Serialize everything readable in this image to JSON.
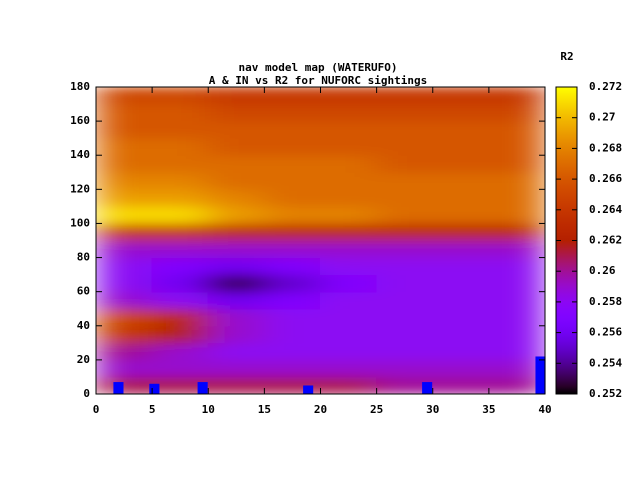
{
  "chart_data": {
    "type": "heatmap",
    "title": [
      "nav model map (WATERUFO)",
      "A & IN vs R2 for NUFORC sightings"
    ],
    "colorbar_label": "R2",
    "x": [
      2.5,
      7.5,
      12.5,
      17.5,
      22.5,
      27.5,
      32.5,
      37.5
    ],
    "y": [
      5,
      15,
      25,
      35,
      45,
      55,
      65,
      75,
      85,
      95,
      105,
      115,
      125,
      135,
      145,
      155,
      165,
      175
    ],
    "z": [
      [
        0.261,
        0.261,
        0.261,
        0.261,
        0.261,
        0.26,
        0.26,
        0.26
      ],
      [
        0.259,
        0.259,
        0.259,
        0.259,
        0.259,
        0.259,
        0.259,
        0.259
      ],
      [
        0.26,
        0.259,
        0.258,
        0.258,
        0.258,
        0.258,
        0.258,
        0.258
      ],
      [
        0.264,
        0.262,
        0.259,
        0.258,
        0.258,
        0.258,
        0.258,
        0.258
      ],
      [
        0.265,
        0.263,
        0.259,
        0.258,
        0.258,
        0.258,
        0.258,
        0.258
      ],
      [
        0.259,
        0.258,
        0.256,
        0.257,
        0.258,
        0.258,
        0.258,
        0.258
      ],
      [
        0.258,
        0.256,
        0.253,
        0.255,
        0.257,
        0.258,
        0.258,
        0.258
      ],
      [
        0.258,
        0.257,
        0.256,
        0.257,
        0.258,
        0.258,
        0.258,
        0.258
      ],
      [
        0.259,
        0.259,
        0.259,
        0.259,
        0.259,
        0.259,
        0.259,
        0.259
      ],
      [
        0.264,
        0.264,
        0.263,
        0.263,
        0.263,
        0.263,
        0.263,
        0.263
      ],
      [
        0.271,
        0.271,
        0.269,
        0.268,
        0.268,
        0.267,
        0.267,
        0.267
      ],
      [
        0.269,
        0.269,
        0.268,
        0.267,
        0.267,
        0.267,
        0.267,
        0.267
      ],
      [
        0.268,
        0.268,
        0.267,
        0.267,
        0.267,
        0.267,
        0.267,
        0.267
      ],
      [
        0.267,
        0.267,
        0.267,
        0.267,
        0.267,
        0.266,
        0.266,
        0.266
      ],
      [
        0.267,
        0.267,
        0.266,
        0.266,
        0.266,
        0.266,
        0.266,
        0.266
      ],
      [
        0.266,
        0.266,
        0.266,
        0.266,
        0.266,
        0.266,
        0.266,
        0.266
      ],
      [
        0.266,
        0.266,
        0.265,
        0.265,
        0.265,
        0.265,
        0.265,
        0.265
      ],
      [
        0.265,
        0.265,
        0.264,
        0.264,
        0.264,
        0.264,
        0.264,
        0.264
      ]
    ],
    "xlim": [
      0,
      40
    ],
    "xticks": [
      0,
      5,
      10,
      15,
      20,
      25,
      30,
      35,
      40
    ],
    "ylim": [
      0,
      180
    ],
    "yticks": [
      0,
      20,
      40,
      60,
      80,
      100,
      120,
      140,
      160,
      180
    ],
    "zlim": [
      0.252,
      0.272
    ],
    "zticks": [
      0.252,
      0.254,
      0.256,
      0.258,
      0.26,
      0.262,
      0.264,
      0.266,
      0.268,
      0.27,
      0.272
    ],
    "overlay": {
      "x": [
        2,
        5.2,
        9.5,
        18.9,
        29.5,
        39.6
      ],
      "values": [
        7,
        6,
        7,
        5,
        7,
        22
      ],
      "color": "#0000ff"
    }
  }
}
